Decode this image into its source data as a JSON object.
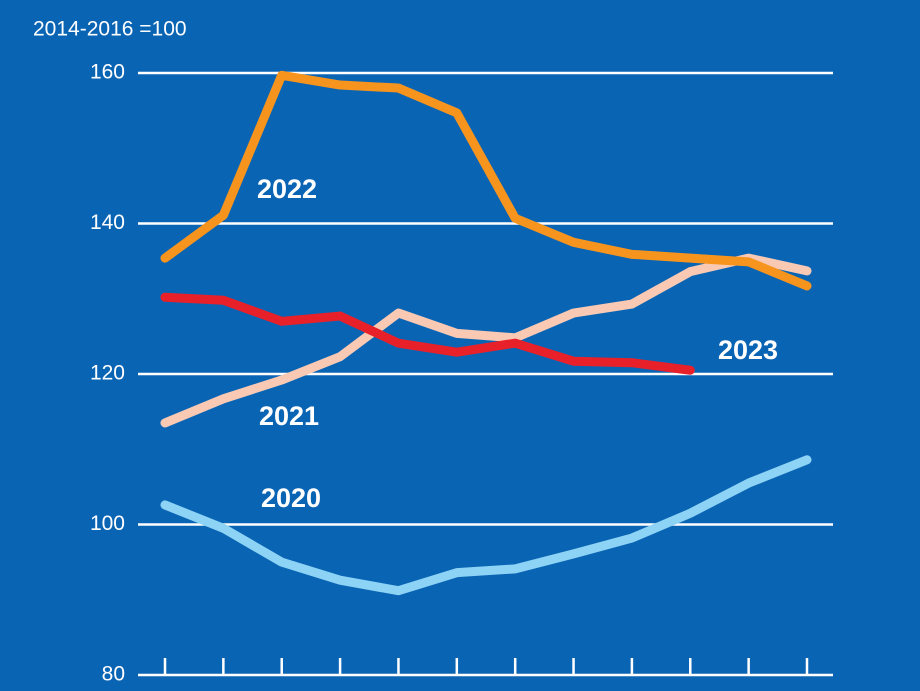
{
  "chart_data": {
    "type": "line",
    "subtitle": "2014-2016 =100",
    "categories": [
      null,
      null,
      null,
      null,
      null,
      null,
      null,
      null,
      null,
      null,
      null,
      null
    ],
    "ylim": [
      80,
      160
    ],
    "yticks": [
      80,
      100,
      120,
      140,
      160
    ],
    "grid": true,
    "series": [
      {
        "name": "2020",
        "color": "#8dd3f5",
        "values": [
          102.6,
          99.5,
          95.0,
          92.6,
          91.2,
          93.6,
          94.1,
          96.1,
          98.2,
          101.5,
          105.5,
          108.6
        ]
      },
      {
        "name": "2021",
        "color": "#f9c9b3",
        "values": [
          113.5,
          116.7,
          119.2,
          122.3,
          128.1,
          125.4,
          124.8,
          128.1,
          129.3,
          133.6,
          135.4,
          133.7
        ]
      },
      {
        "name": "2022",
        "color": "#f7941d",
        "values": [
          135.4,
          141.1,
          159.7,
          158.4,
          158.0,
          154.7,
          140.7,
          137.5,
          135.9,
          135.4,
          134.9,
          131.7
        ]
      },
      {
        "name": "2023",
        "color": "#e8202a",
        "values": [
          130.2,
          129.8,
          127.0,
          127.7,
          124.1,
          122.9,
          124.1,
          121.7,
          121.5,
          120.5,
          null,
          null
        ]
      }
    ]
  }
}
